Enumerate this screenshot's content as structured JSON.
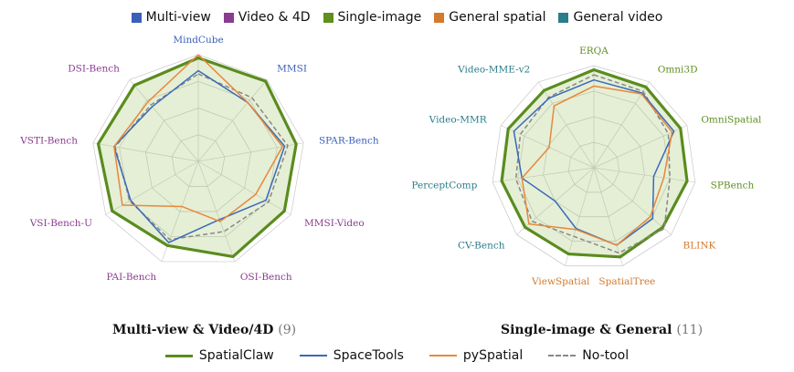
{
  "category_legend": [
    {
      "label": "Multi-view",
      "color": "#3a5fb8"
    },
    {
      "label": "Video & 4D",
      "color": "#8a3c8f"
    },
    {
      "label": "Single-image",
      "color": "#5e8f1f"
    },
    {
      "label": "General spatial",
      "color": "#d47a2c"
    },
    {
      "label": "General video",
      "color": "#2a7d8a"
    }
  ],
  "captions": [
    {
      "title": "Multi-view & Video/4D",
      "count": "(9)"
    },
    {
      "title": "Single-image & General",
      "count": "(11)"
    }
  ],
  "series_legend": [
    {
      "label": "SpatialClaw",
      "color": "#5a8c1e",
      "style": "thick"
    },
    {
      "label": "SpaceTools",
      "color": "#3a6ab8",
      "style": "solid"
    },
    {
      "label": "pySpatial",
      "color": "#e8883a",
      "style": "solid"
    },
    {
      "label": "No-tool",
      "color": "#888888",
      "style": "dashed"
    }
  ],
  "chart_data": [
    {
      "type": "radar",
      "title": "Multi-view & Video/4D (9)",
      "axes": [
        {
          "label": "MindCube",
          "color": "#3a5fb8"
        },
        {
          "label": "MMSI",
          "color": "#3a5fb8"
        },
        {
          "label": "SPAR-Bench",
          "color": "#3a5fb8"
        },
        {
          "label": "MMSI-Video",
          "color": "#8a3c8f"
        },
        {
          "label": "OSI-Bench",
          "color": "#8a3c8f"
        },
        {
          "label": "PAI-Bench",
          "color": "#8a3c8f"
        },
        {
          "label": "VSI-Bench-U",
          "color": "#8a3c8f"
        },
        {
          "label": "VSTI-Bench",
          "color": "#8a3c8f"
        },
        {
          "label": "DSI-Bench",
          "color": "#8a3c8f"
        }
      ],
      "range": [
        0,
        1
      ],
      "grid": true,
      "series": [
        {
          "name": "SpatialClaw",
          "values": [
            0.97,
            0.98,
            0.93,
            0.93,
            0.95,
            0.84,
            0.93,
            0.95,
            0.93
          ]
        },
        {
          "name": "SpaceTools",
          "values": [
            0.85,
            0.72,
            0.82,
            0.73,
            0.58,
            0.81,
            0.73,
            0.8,
            0.67
          ]
        },
        {
          "name": "pySpatial",
          "values": [
            1.0,
            0.72,
            0.8,
            0.62,
            0.6,
            0.45,
            0.82,
            0.8,
            0.73
          ]
        },
        {
          "name": "No-tool",
          "values": [
            0.82,
            0.78,
            0.85,
            0.76,
            0.7,
            0.78,
            0.74,
            0.79,
            0.69
          ]
        }
      ]
    },
    {
      "type": "radar",
      "title": "Single-image & General (11)",
      "axes": [
        {
          "label": "ERQA",
          "color": "#5e8f1f"
        },
        {
          "label": "Omni3D",
          "color": "#5e8f1f"
        },
        {
          "label": "OmniSpatial",
          "color": "#5e8f1f"
        },
        {
          "label": "SPBench",
          "color": "#5e8f1f"
        },
        {
          "label": "BLINK",
          "color": "#d47a2c"
        },
        {
          "label": "SpatialTree",
          "color": "#d47a2c"
        },
        {
          "label": "ViewSpatial",
          "color": "#d47a2c"
        },
        {
          "label": "CV-Bench",
          "color": "#2a7d8a"
        },
        {
          "label": "PerceptComp",
          "color": "#2a7d8a"
        },
        {
          "label": "Video-MMR",
          "color": "#2a7d8a"
        },
        {
          "label": "Video-MME-v2",
          "color": "#2a7d8a"
        }
      ],
      "range": [
        0,
        1
      ],
      "grid": true,
      "series": [
        {
          "name": "SpatialClaw",
          "values": [
            0.96,
            0.94,
            0.93,
            0.92,
            0.89,
            0.91,
            0.88,
            0.89,
            0.91,
            0.92,
            0.9
          ]
        },
        {
          "name": "SpaceTools",
          "values": [
            0.86,
            0.87,
            0.86,
            0.59,
            0.76,
            0.79,
            0.62,
            0.5,
            0.71,
            0.86,
            0.81
          ]
        },
        {
          "name": "pySpatial",
          "values": [
            0.8,
            0.86,
            0.84,
            0.69,
            0.73,
            0.79,
            0.63,
            0.84,
            0.71,
            0.48,
            0.72
          ]
        },
        {
          "name": "No-tool",
          "values": [
            0.91,
            0.89,
            0.8,
            0.75,
            0.91,
            0.87,
            0.7,
            0.8,
            0.77,
            0.79,
            0.82
          ]
        }
      ]
    }
  ]
}
